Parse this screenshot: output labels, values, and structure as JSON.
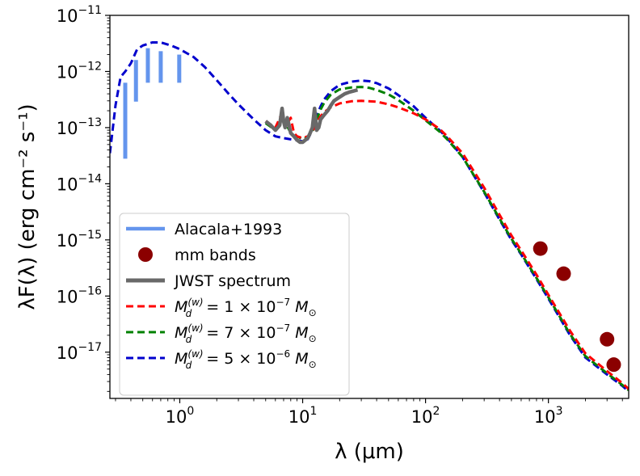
{
  "chart_data": {
    "type": "line",
    "title": "",
    "xlabel_text": "λ (μm)",
    "ylabel_text": "λF(λ) (erg cm⁻² s⁻¹)",
    "xscale": "log",
    "yscale": "log",
    "xlim": [
      0.27,
      4500
    ],
    "ylim": [
      1.5e-18,
      1e-11
    ],
    "x_ticks": [
      {
        "value": 1,
        "base": "10",
        "exp": "0"
      },
      {
        "value": 10,
        "base": "10",
        "exp": "1"
      },
      {
        "value": 100,
        "base": "10",
        "exp": "2"
      },
      {
        "value": 1000,
        "base": "10",
        "exp": "3"
      }
    ],
    "y_ticks": [
      {
        "value": 1e-11,
        "base": "10",
        "exp": "−11"
      },
      {
        "value": 1e-12,
        "base": "10",
        "exp": "−12"
      },
      {
        "value": 1e-13,
        "base": "10",
        "exp": "−13"
      },
      {
        "value": 1e-14,
        "base": "10",
        "exp": "−14"
      },
      {
        "value": 1e-15,
        "base": "10",
        "exp": "−15"
      },
      {
        "value": 1e-16,
        "base": "10",
        "exp": "−16"
      },
      {
        "value": 1e-17,
        "base": "10",
        "exp": "−17"
      }
    ],
    "legend": {
      "position": "lower-left",
      "entries": [
        {
          "label": "Alacala+1993",
          "style": "bar",
          "color": "#6495ed"
        },
        {
          "label": "mm bands",
          "style": "marker",
          "color": "#8b0000"
        },
        {
          "label": "JWST spectrum",
          "style": "thick-line",
          "color": "#696969"
        },
        {
          "label": "M_d^(w) = 1 × 10^−7 M_⊙",
          "base": "M",
          "sub": "d",
          "sup": "(w)",
          "mid": " = 1 × 10",
          "exp": "−7",
          "unit": " M",
          "unit_sub": "⊙",
          "style": "dashed",
          "color": "#ff0000"
        },
        {
          "label": "M_d^(w) = 7 × 10^−7 M_⊙",
          "base": "M",
          "sub": "d",
          "sup": "(w)",
          "mid": " = 7 × 10",
          "exp": "−7",
          "unit": " M",
          "unit_sub": "⊙",
          "style": "dashed",
          "color": "#008000"
        },
        {
          "label": "M_d^(w) = 5 × 10^−6 M_⊙",
          "base": "M",
          "sub": "d",
          "sup": "(w)",
          "mid": " = 5 × 10",
          "exp": "−6",
          "unit": " M",
          "unit_sub": "⊙",
          "style": "dashed",
          "color": "#0000cd"
        }
      ]
    },
    "alcala_bars": [
      {
        "x": 0.36,
        "y_low": 2.8e-14,
        "y_high": 6.3e-13
      },
      {
        "x": 0.44,
        "y_low": 2.9e-13,
        "y_high": 1.6e-12
      },
      {
        "x": 0.55,
        "y_low": 6.3e-13,
        "y_high": 2.6e-12
      },
      {
        "x": 0.7,
        "y_low": 6.3e-13,
        "y_high": 2.3e-12
      },
      {
        "x": 0.99,
        "y_low": 6.3e-13,
        "y_high": 2e-12
      }
    ],
    "mm_points": [
      {
        "x": 860,
        "y": 7e-16
      },
      {
        "x": 1330,
        "y": 2.5e-16
      },
      {
        "x": 3000,
        "y": 1.7e-17
      },
      {
        "x": 3400,
        "y": 6e-18
      }
    ],
    "series": [
      {
        "name": "M_d^(w) = 5 × 10^−6 M_⊙",
        "color": "#0000cd",
        "x": [
          0.27,
          0.3,
          0.33,
          0.36,
          0.4,
          0.45,
          0.5,
          0.6,
          0.7,
          0.85,
          1.0,
          1.3,
          1.6,
          2.0,
          2.5,
          3.0,
          4.0,
          5.0,
          6.0,
          7.0,
          8.0,
          9.0,
          10,
          11,
          12,
          13,
          14,
          15,
          17,
          20,
          25,
          30,
          35,
          40,
          50,
          60,
          80,
          100,
          130,
          150,
          200,
          300,
          400,
          500,
          600,
          800,
          1000,
          1500,
          2000,
          3000,
          4000,
          4500
        ],
        "y": [
          3.5e-14,
          2.5e-13,
          8e-13,
          1e-12,
          1.4e-12,
          2.5e-12,
          2.9e-12,
          3.3e-12,
          3.3e-12,
          2.9e-12,
          2.5e-12,
          1.8e-12,
          1.2e-12,
          7e-13,
          4e-13,
          2.6e-13,
          1.4e-13,
          9e-14,
          7e-14,
          6.5e-14,
          6.2e-14,
          6e-14,
          5.7e-14,
          6.2e-14,
          9e-14,
          1.6e-13,
          2.4e-13,
          3.2e-13,
          4.5e-13,
          5.8e-13,
          6.6e-13,
          6.9e-13,
          6.7e-13,
          6.2e-13,
          5e-13,
          3.8e-13,
          2.4e-13,
          1.5e-13,
          9e-14,
          6.5e-14,
          3e-14,
          7e-15,
          2.3e-15,
          1e-15,
          5.5e-16,
          2e-16,
          9e-17,
          2e-17,
          8e-18,
          4e-18,
          2.5e-18,
          2e-18
        ]
      },
      {
        "name": "M_d^(w) = 7 × 10^−7 M_⊙",
        "color": "#008000",
        "x": [
          5.0,
          6.0,
          7.0,
          8.0,
          9.0,
          10,
          11,
          12,
          13,
          14,
          15,
          17,
          20,
          25,
          30,
          35,
          40,
          50,
          60,
          80,
          100,
          130,
          150,
          200,
          300,
          400,
          500,
          600,
          800,
          1000,
          1500,
          2000,
          3000,
          4000,
          4500
        ],
        "y": [
          1.2e-13,
          9e-14,
          1.4e-13,
          8e-14,
          7e-14,
          6.2e-14,
          6.8e-14,
          8.5e-14,
          1.4e-13,
          2.1e-13,
          2.8e-13,
          3.9e-13,
          4.8e-13,
          5.2e-13,
          5.3e-13,
          5.1e-13,
          4.7e-13,
          3.9e-13,
          3.1e-13,
          2e-13,
          1.35e-13,
          8.5e-14,
          6.2e-14,
          3e-14,
          7.2e-15,
          2.4e-15,
          1.05e-15,
          5.7e-16,
          2.1e-16,
          9.5e-17,
          2.1e-17,
          8.5e-18,
          4.2e-18,
          2.6e-18,
          2.1e-18
        ]
      },
      {
        "name": "M_d^(w) = 1 × 10^−7 M_⊙",
        "color": "#ff0000",
        "x": [
          5.0,
          6.0,
          6.7,
          7.2,
          8.0,
          8.5,
          9.0,
          10,
          11,
          12,
          13,
          14,
          15,
          17,
          20,
          25,
          30,
          40,
          50,
          60,
          80,
          100,
          130,
          150,
          200,
          300,
          400,
          500,
          600,
          800,
          1000,
          1500,
          2000,
          3000,
          4000,
          4500
        ],
        "y": [
          1.3e-13,
          1e-13,
          1.7e-13,
          1e-13,
          1.5e-13,
          8e-14,
          7e-14,
          6.5e-14,
          7e-14,
          8.5e-14,
          1.2e-13,
          1.6e-13,
          1.9e-13,
          2.3e-13,
          2.7e-13,
          2.95e-13,
          3e-13,
          2.9e-13,
          2.6e-13,
          2.3e-13,
          1.8e-13,
          1.4e-13,
          9.5e-14,
          7e-14,
          3.5e-14,
          8.5e-15,
          2.8e-15,
          1.2e-15,
          6.5e-16,
          2.4e-16,
          1.05e-16,
          2.4e-17,
          9.5e-18,
          4.6e-18,
          2.8e-18,
          2.2e-18
        ]
      },
      {
        "name": "JWST spectrum",
        "color": "#696969",
        "x": [
          5.0,
          5.5,
          6.0,
          6.5,
          6.8,
          7.0,
          7.2,
          7.5,
          8.0,
          8.5,
          9.0,
          9.5,
          10,
          10.5,
          11,
          11.5,
          12,
          12.5,
          13,
          13.5,
          14,
          15,
          16,
          17,
          18,
          20,
          22,
          24,
          26,
          28
        ],
        "y": [
          1.3e-13,
          1.1e-13,
          9e-14,
          1.1e-13,
          2.2e-13,
          1.3e-13,
          1e-13,
          1.5e-13,
          8e-14,
          7e-14,
          6e-14,
          5.5e-14,
          5.5e-14,
          6e-14,
          6.5e-14,
          8e-14,
          1e-13,
          2.2e-13,
          9e-14,
          1e-13,
          1.4e-13,
          1.7e-13,
          2e-13,
          2.5e-13,
          3e-13,
          3.5e-13,
          4e-13,
          4.3e-13,
          4.5e-13,
          4.7e-13
        ]
      }
    ]
  }
}
